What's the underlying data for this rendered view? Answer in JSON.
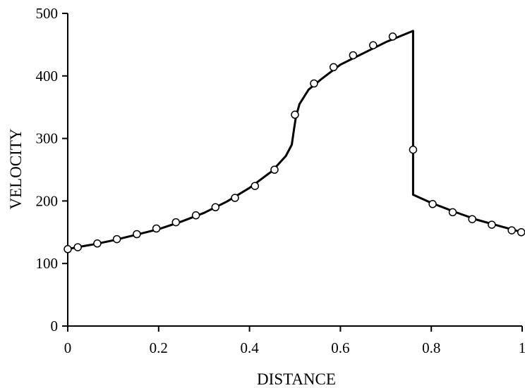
{
  "chart_data": {
    "type": "line",
    "xlabel": "DISTANCE",
    "ylabel": "VELOCITY",
    "xlim": [
      0,
      1
    ],
    "ylim": [
      0,
      500
    ],
    "xticks": [
      0,
      0.2,
      0.4,
      0.6,
      0.8,
      1
    ],
    "xtick_labels": [
      "0",
      "0.2",
      "0.4",
      "0.6",
      "0.8",
      "1"
    ],
    "yticks": [
      0,
      100,
      200,
      300,
      400,
      500
    ],
    "ytick_labels": [
      "0",
      "100",
      "200",
      "300",
      "400",
      "500"
    ],
    "grid": false,
    "legend": "none",
    "series": [
      {
        "kind": "line",
        "x": [
          0,
          0.02,
          0.06,
          0.1,
          0.15,
          0.2,
          0.25,
          0.3,
          0.35,
          0.4,
          0.45,
          0.48,
          0.493,
          0.498,
          0.502,
          0.51,
          0.53,
          0.56,
          0.6,
          0.65,
          0.7,
          0.76,
          0.76,
          0.8,
          0.85,
          0.9,
          0.95,
          1.0
        ],
        "y": [
          123,
          126,
          131,
          137,
          146,
          155,
          167,
          181,
          199,
          221,
          248,
          272,
          290,
          315,
          334,
          355,
          378,
          396,
          418,
          436,
          454,
          472,
          210,
          197,
          183,
          170,
          160,
          150
        ]
      },
      {
        "kind": "markers",
        "x": [
          0,
          0.022,
          0.065,
          0.108,
          0.152,
          0.195,
          0.238,
          0.282,
          0.325,
          0.368,
          0.412,
          0.455,
          0.5,
          0.542,
          0.585,
          0.628,
          0.672,
          0.715,
          0.76,
          0.803,
          0.847,
          0.89,
          0.933,
          0.977,
          0.998
        ],
        "y": [
          123,
          126,
          132,
          139,
          147,
          156,
          166,
          177,
          190,
          205,
          224,
          250,
          338,
          388,
          414,
          433,
          449,
          463,
          282,
          195,
          182,
          171,
          162,
          153,
          150
        ]
      }
    ]
  }
}
